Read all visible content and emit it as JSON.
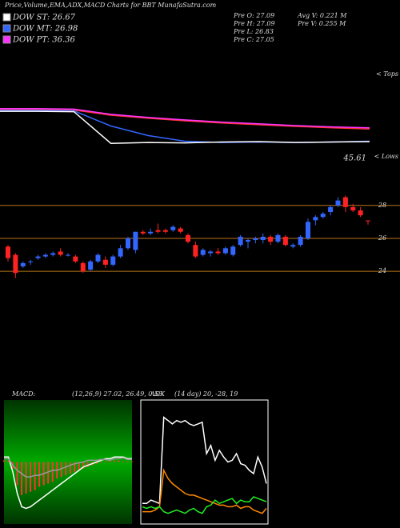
{
  "header": {
    "title": "Price,Volume,EMA,ADX,MACD Charts for BBT MunafaSutra.com"
  },
  "legend": [
    {
      "label": "DOW ST: 26.67",
      "color": "#ffffff"
    },
    {
      "label": "DOW MT: 26.98",
      "color": "#3366ff"
    },
    {
      "label": "DOW PT: 36.36",
      "color": "#ff33ff"
    }
  ],
  "stats": [
    "Pre O: 27.09",
    "Pre H: 27.09",
    "Pre L: 26.83",
    "Pre C: 27.05",
    "Avg V: 0.221 M",
    "Pre V: 0.255 M"
  ],
  "chart_data": [
    {
      "type": "line",
      "annotation": "45.61",
      "corner_label": "< Tops",
      "ylim": [
        45,
        57
      ],
      "series": [
        {
          "color": "#ff3333",
          "values": [
            54.8,
            54.8,
            54.7,
            53.5,
            52.8,
            52.2,
            51.7,
            51.3,
            50.9,
            50.6,
            50.3
          ]
        },
        {
          "color": "#ff33ff",
          "values": [
            55.0,
            55.0,
            54.9,
            53.7,
            53.0,
            52.4,
            51.9,
            51.5,
            51.1,
            50.8,
            50.6
          ]
        },
        {
          "color": "#3366ff",
          "values": [
            54.6,
            54.6,
            54.5,
            51.0,
            48.8,
            47.5,
            47.2,
            47.3,
            47.2,
            47.3,
            47.5
          ]
        },
        {
          "color": "#ffffff",
          "values": [
            54.4,
            54.4,
            54.3,
            47.0,
            47.2,
            47.1,
            47.3,
            47.4,
            47.2,
            47.3,
            47.4
          ]
        }
      ]
    },
    {
      "type": "candlestick",
      "corner_label": "< Lows",
      "ylim": [
        22.5,
        29.4
      ],
      "yticks": [
        24,
        26,
        28
      ],
      "grid_color": "#b8741a",
      "up_color": "#3366ff",
      "down_color": "#ff2222",
      "open": [
        25.5,
        25.0,
        24.3,
        24.6,
        24.8,
        24.9,
        25.0,
        25.2,
        25.0,
        24.9,
        24.5,
        24.1,
        24.6,
        24.7,
        24.4,
        24.9,
        25.4,
        25.3,
        26.4,
        26.3,
        26.5,
        26.5,
        26.5,
        26.6,
        26.2,
        25.6,
        25.0,
        25.1,
        25.2,
        25.1,
        25.0,
        25.6,
        25.8,
        25.9,
        25.9,
        26.1,
        25.8,
        26.1,
        25.5,
        25.6,
        26.0,
        27.1,
        27.3,
        27.6,
        28.0,
        28.5,
        27.9,
        27.7,
        27.09
      ],
      "high": [
        25.6,
        25.1,
        24.6,
        24.7,
        25.0,
        25.1,
        25.2,
        25.4,
        25.1,
        25.0,
        24.6,
        24.7,
        25.1,
        24.9,
        25.0,
        25.6,
        26.1,
        26.4,
        26.5,
        26.6,
        26.9,
        26.6,
        26.8,
        26.7,
        26.3,
        25.8,
        25.4,
        25.3,
        25.4,
        25.5,
        25.6,
        26.2,
        26.0,
        26.1,
        26.3,
        26.2,
        26.3,
        26.2,
        25.7,
        26.2,
        27.2,
        27.4,
        27.6,
        28.0,
        28.5,
        28.6,
        28.1,
        27.9,
        27.09
      ],
      "low": [
        24.6,
        23.6,
        24.2,
        24.4,
        24.7,
        24.8,
        24.9,
        24.9,
        24.9,
        24.5,
        23.9,
        24.0,
        24.5,
        24.2,
        24.3,
        24.8,
        25.3,
        25.1,
        26.2,
        26.2,
        26.3,
        26.3,
        26.4,
        26.3,
        25.7,
        24.8,
        24.9,
        24.9,
        25.0,
        25.0,
        24.9,
        25.5,
        25.4,
        25.7,
        25.7,
        25.6,
        25.7,
        25.5,
        25.4,
        25.5,
        25.9,
        26.8,
        27.2,
        27.4,
        27.9,
        27.6,
        27.6,
        27.3,
        26.83
      ],
      "close": [
        24.8,
        23.9,
        24.5,
        24.6,
        24.9,
        25.0,
        25.1,
        25.0,
        25.0,
        24.6,
        24.0,
        24.6,
        25.0,
        24.4,
        24.9,
        25.4,
        26.0,
        26.4,
        26.3,
        26.4,
        26.4,
        26.4,
        26.7,
        26.4,
        25.8,
        24.9,
        25.3,
        25.2,
        25.1,
        25.4,
        25.5,
        26.1,
        25.9,
        26.0,
        26.1,
        25.8,
        26.2,
        25.6,
        25.6,
        26.1,
        27.0,
        27.3,
        27.5,
        27.9,
        28.3,
        27.9,
        27.7,
        27.4,
        27.05
      ]
    },
    {
      "type": "macd",
      "title": "MACD:",
      "subtitle": "(12,26,9) 27.02, 26.49, 0.53",
      "ylim": [
        -3.5,
        3.5
      ],
      "histogram": {
        "color": "#ff3333",
        "values": [
          0.1,
          0.1,
          -0.4,
          -1.4,
          -2.0,
          -1.9,
          -1.8,
          -1.7,
          -1.5,
          -1.4,
          -1.3,
          -1.2,
          -1.0,
          -0.9,
          -0.8,
          -0.7,
          -0.6,
          -0.5,
          -0.4,
          -0.3,
          -0.2,
          -0.1,
          -0.05,
          0.05,
          0.1,
          0.1,
          0.1,
          0.05,
          0.05,
          0.05
        ]
      },
      "series": [
        {
          "color": "#ffffff",
          "values": [
            0.3,
            0.3,
            -0.6,
            -1.9,
            -2.7,
            -2.8,
            -2.7,
            -2.5,
            -2.3,
            -2.1,
            -1.9,
            -1.7,
            -1.5,
            -1.3,
            -1.1,
            -0.9,
            -0.7,
            -0.5,
            -0.3,
            -0.2,
            -0.1,
            0,
            0.1,
            0.2,
            0.2,
            0.3,
            0.3,
            0.3,
            0.2,
            0.2
          ]
        },
        {
          "color": "#999999",
          "values": [
            0.2,
            0.2,
            -0.2,
            -0.5,
            -0.7,
            -0.9,
            -0.9,
            -0.8,
            -0.8,
            -0.7,
            -0.6,
            -0.5,
            -0.5,
            -0.4,
            -0.3,
            -0.2,
            -0.1,
            -0.05,
            0,
            0.1,
            0.1,
            0.1,
            0.15,
            0.15,
            0.1,
            0.2,
            0.2,
            0.25,
            0.15,
            0.15
          ]
        }
      ]
    },
    {
      "type": "line",
      "title": "ADX",
      "subtitle": "(14 day) 20, -28, 19",
      "ylim": [
        0,
        70
      ],
      "series": [
        {
          "color": "#ffffff",
          "values": [
            10,
            10,
            12,
            11,
            10,
            62,
            60,
            58,
            60,
            59,
            60,
            58,
            57,
            58,
            59,
            40,
            45,
            36,
            42,
            38,
            35,
            36,
            40,
            34,
            33,
            30,
            28,
            38,
            32,
            22
          ]
        },
        {
          "color": "#ff8800",
          "values": [
            5,
            5,
            5,
            6,
            8,
            30,
            25,
            22,
            20,
            18,
            16,
            15,
            15,
            14,
            13,
            12,
            11,
            10,
            9,
            9,
            8,
            8,
            9,
            7,
            8,
            8,
            6,
            5,
            4,
            7
          ]
        },
        {
          "color": "#22ee22",
          "values": [
            8,
            7,
            8,
            7,
            8,
            5,
            4,
            5,
            6,
            5,
            4,
            6,
            7,
            5,
            4,
            8,
            9,
            12,
            10,
            11,
            12,
            13,
            10,
            12,
            11,
            11,
            14,
            13,
            12,
            11
          ]
        }
      ]
    }
  ]
}
